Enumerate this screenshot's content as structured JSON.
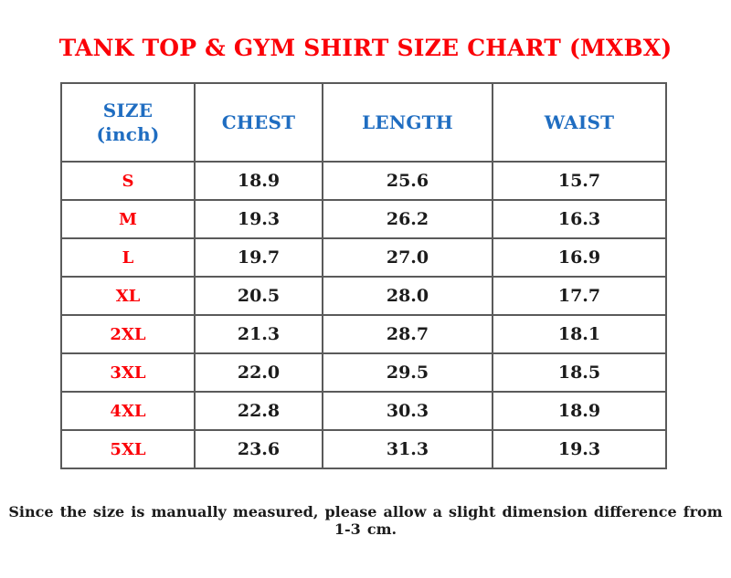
{
  "page": {
    "title": "TANK TOP & GYM SHIRT SIZE CHART (MXBX)",
    "footnote": "Since the size is manually measured, please allow a slight dimension difference from 1-3 cm."
  },
  "colors": {
    "title_red": "#fb0007",
    "size_label_red": "#fb0007",
    "header_blue": "#1f6dc1",
    "value_black": "#1b1b1b",
    "border_gray": "#5a5a5a",
    "background": "#ffffff"
  },
  "table": {
    "headers": [
      {
        "label": "SIZE\n(inch)"
      },
      {
        "label": "CHEST"
      },
      {
        "label": "LENGTH"
      },
      {
        "label": "WAIST"
      }
    ],
    "rows": [
      {
        "size": "S",
        "chest": "18.9",
        "length": "25.6",
        "waist": "15.7"
      },
      {
        "size": "M",
        "chest": "19.3",
        "length": "26.2",
        "waist": "16.3"
      },
      {
        "size": "L",
        "chest": "19.7",
        "length": "27.0",
        "waist": "16.9"
      },
      {
        "size": "XL",
        "chest": "20.5",
        "length": "28.0",
        "waist": "17.7"
      },
      {
        "size": "2XL",
        "chest": "21.3",
        "length": "28.7",
        "waist": "18.1"
      },
      {
        "size": "3XL",
        "chest": "22.0",
        "length": "29.5",
        "waist": "18.5"
      },
      {
        "size": "4XL",
        "chest": "22.8",
        "length": "30.3",
        "waist": "18.9"
      },
      {
        "size": "5XL",
        "chest": "23.6",
        "length": "31.3",
        "waist": "19.3"
      }
    ]
  }
}
